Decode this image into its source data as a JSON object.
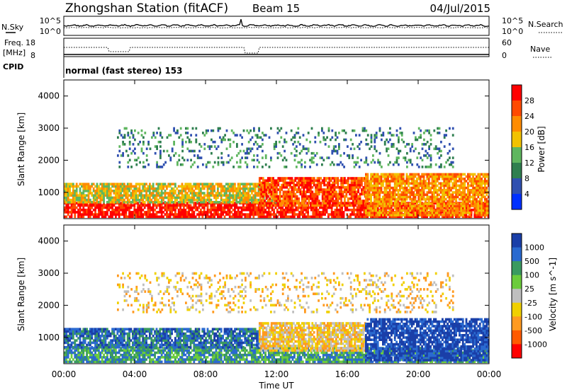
{
  "header": {
    "title": "Zhongshan Station (fitACF)",
    "beam": "Beam 15",
    "date": "04/Jul/2015"
  },
  "status_panel": {
    "nsky_label": "N.Sky",
    "nsky_ticks": [
      "10^5",
      "10^0"
    ],
    "nsearch_label": "N.Search",
    "nsearch_ticks": [
      "10^5",
      "10^0"
    ],
    "freq_label_1": "Freq.",
    "freq_label_2": "[MHz]",
    "freq_ticks": [
      "18",
      "8"
    ],
    "nave_label": "Nave",
    "nave_ticks": [
      "60",
      "0"
    ],
    "cpid_label": "CPID",
    "cpid_value": "normal (fast stereo) 153"
  },
  "time_axis": {
    "label": "Time UT",
    "ticks": [
      "00:00",
      "04:00",
      "08:00",
      "12:00",
      "16:00",
      "20:00",
      "00:00"
    ]
  },
  "chart_data": [
    {
      "type": "heatmap",
      "parameter": "Power",
      "ylabel": "Slant Range [km]",
      "ylim": [
        180,
        4500
      ],
      "yticks": [
        1000,
        2000,
        3000,
        4000
      ],
      "xlim_hours": [
        0,
        24
      ],
      "colorbar": {
        "label": "Power [dB]",
        "ticks": [
          "28",
          "24",
          "20",
          "16",
          "12",
          "8",
          "4"
        ],
        "colors": [
          "#ff0000",
          "#ff4a00",
          "#ff8c00",
          "#f2c200",
          "#5fb65f",
          "#2f7f4f",
          "#3050b0",
          "#0030ff"
        ]
      },
      "bands": [
        {
          "t0": 0,
          "t1": 24,
          "r0": 250,
          "r1": 700,
          "dominant": "28"
        },
        {
          "t0": 0,
          "t1": 12,
          "r0": 700,
          "r1": 1300,
          "dominant": "16"
        },
        {
          "t0": 11,
          "t1": 17,
          "r0": 600,
          "r1": 1500,
          "dominant": "24"
        },
        {
          "t0": 17,
          "t1": 24,
          "r0": 300,
          "r1": 1600,
          "dominant": "20"
        },
        {
          "t0": 3,
          "t1": 22,
          "r0": 1800,
          "r1": 3000,
          "dominant": "8"
        }
      ]
    },
    {
      "type": "heatmap",
      "parameter": "Velocity",
      "ylabel": "Slant Range [km]",
      "ylim": [
        180,
        4500
      ],
      "yticks": [
        1000,
        2000,
        3000,
        4000
      ],
      "xlim_hours": [
        0,
        24
      ],
      "colorbar": {
        "label": "Velocity [m s^-1]",
        "ticks": [
          "1000",
          "500",
          "100",
          "25",
          "-25",
          "-100",
          "-500",
          "-1000"
        ],
        "colors": [
          "#1a3fa8",
          "#2a6ad0",
          "#3a9a60",
          "#6ccc3c",
          "#bfbfbf",
          "#f0d000",
          "#ff9a20",
          "#ff5a00",
          "#ff0000"
        ]
      },
      "bands": [
        {
          "t0": 0,
          "t1": 24,
          "r0": 250,
          "r1": 700,
          "dominant": "100"
        },
        {
          "t0": 0,
          "t1": 11,
          "r0": 700,
          "r1": 1300,
          "dominant": "500"
        },
        {
          "t0": 11,
          "t1": 17,
          "r0": 600,
          "r1": 1500,
          "dominant": "-100"
        },
        {
          "t0": 17,
          "t1": 24,
          "r0": 300,
          "r1": 1600,
          "dominant": "1000"
        },
        {
          "t0": 3,
          "t1": 22,
          "r0": 1800,
          "r1": 3000,
          "dominant": "-100"
        }
      ]
    }
  ]
}
